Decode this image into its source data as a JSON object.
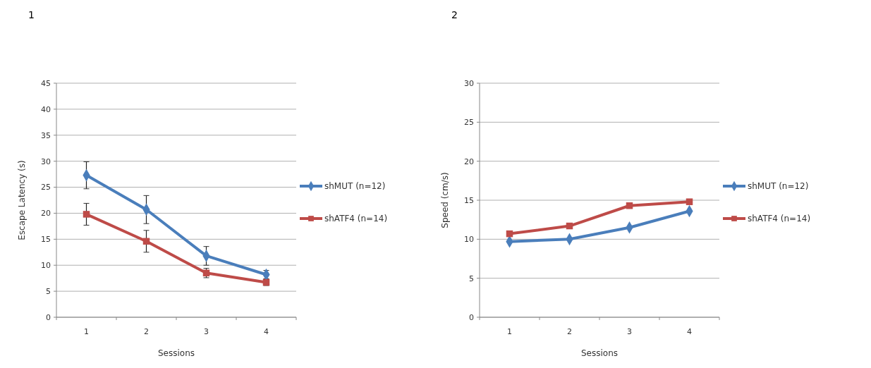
{
  "chart_data": [
    {
      "type": "line",
      "title": "1",
      "xlabel": "Sessions",
      "ylabel": "Escape Latency (s)",
      "categories": [
        "1",
        "2",
        "3",
        "4"
      ],
      "ylim": [
        0,
        45
      ],
      "yticks": [
        0,
        5,
        10,
        15,
        20,
        25,
        30,
        35,
        40,
        45
      ],
      "grid": "y",
      "legend": "right",
      "series": [
        {
          "name": "shMUT (n=12)",
          "color": "#4a7ebb",
          "marker": "diamond",
          "values": [
            27.3,
            20.7,
            11.8,
            8.2
          ],
          "errors": [
            2.6,
            2.7,
            1.8,
            0.8
          ]
        },
        {
          "name": "shATF4 (n=14)",
          "color": "#be4b48",
          "marker": "square",
          "values": [
            19.8,
            14.6,
            8.5,
            6.7
          ],
          "errors": [
            2.1,
            2.1,
            0.9,
            0.6
          ]
        }
      ]
    },
    {
      "type": "line",
      "title": "2",
      "xlabel": "Sessions",
      "ylabel": "Speed (cm/s)",
      "categories": [
        "1",
        "2",
        "3",
        "4"
      ],
      "ylim": [
        0,
        30
      ],
      "yticks": [
        0,
        5,
        10,
        15,
        20,
        25,
        30
      ],
      "grid": "y",
      "legend": "right",
      "series": [
        {
          "name": "shMUT (n=12)",
          "color": "#4a7ebb",
          "marker": "diamond",
          "values": [
            9.7,
            10.0,
            11.5,
            13.6
          ]
        },
        {
          "name": "shATF4 (n=14)",
          "color": "#be4b48",
          "marker": "square",
          "values": [
            10.7,
            11.7,
            14.3,
            14.8
          ]
        }
      ]
    }
  ]
}
